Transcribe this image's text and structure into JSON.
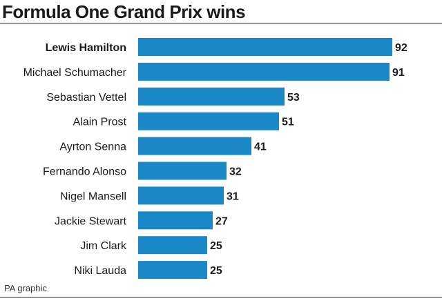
{
  "chart_data": {
    "type": "bar",
    "orientation": "horizontal",
    "title": "Formula One Grand Prix wins",
    "categories": [
      "Lewis Hamilton",
      "Michael Schumacher",
      "Sebastian Vettel",
      "Alain Prost",
      "Ayrton Senna",
      "Fernando Alonso",
      "Nigel Mansell",
      "Jackie Stewart",
      "Jim Clark",
      "Niki Lauda"
    ],
    "values": [
      92,
      91,
      53,
      51,
      41,
      32,
      31,
      27,
      25,
      25
    ],
    "highlighted_category": "Lewis Hamilton",
    "data_labels": true,
    "grid": false,
    "bar_color": "#1a87c6",
    "xlim": [
      0,
      92
    ]
  },
  "footer": {
    "source": "PA graphic"
  }
}
